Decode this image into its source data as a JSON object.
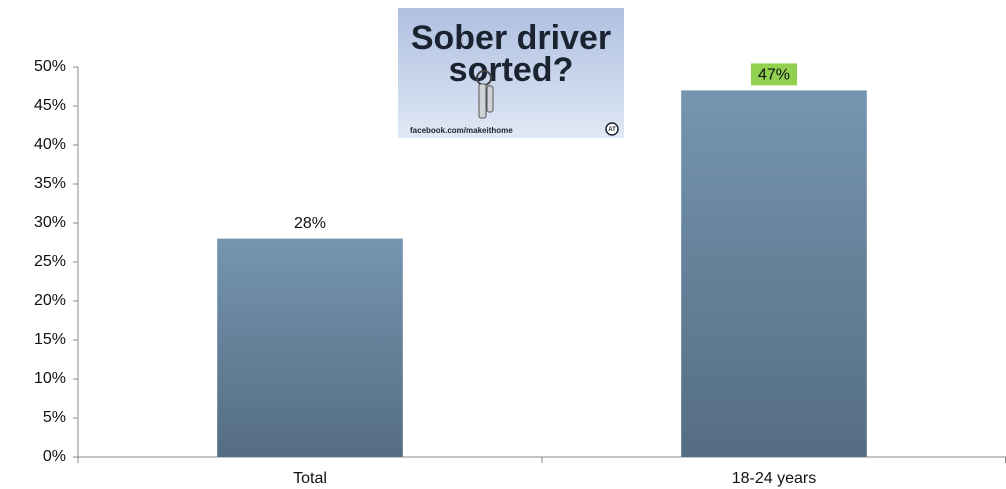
{
  "chart_data": {
    "type": "bar",
    "categories": [
      "Total",
      "18-24 years"
    ],
    "values": [
      28,
      47
    ],
    "value_labels": [
      "28%",
      "47%"
    ],
    "label_backgrounds": [
      null,
      "#92d050"
    ],
    "color": "#6a88a2",
    "ylim": [
      0,
      50
    ],
    "yticks": [
      {
        "value": 0,
        "label": "0%"
      },
      {
        "value": 5,
        "label": "5%"
      },
      {
        "value": 10,
        "label": "10%"
      },
      {
        "value": 15,
        "label": "15%"
      },
      {
        "value": 20,
        "label": "20%"
      },
      {
        "value": 25,
        "label": "25%"
      },
      {
        "value": 30,
        "label": "30%"
      },
      {
        "value": 35,
        "label": "35%"
      },
      {
        "value": 40,
        "label": "40%"
      },
      {
        "value": 45,
        "label": "45%"
      },
      {
        "value": 50,
        "label": "50%"
      }
    ],
    "grid": false,
    "inset": {
      "headline": [
        "Sober driver",
        "sorted?"
      ],
      "url": "facebook.com/makeithome",
      "logo": "AT"
    }
  }
}
